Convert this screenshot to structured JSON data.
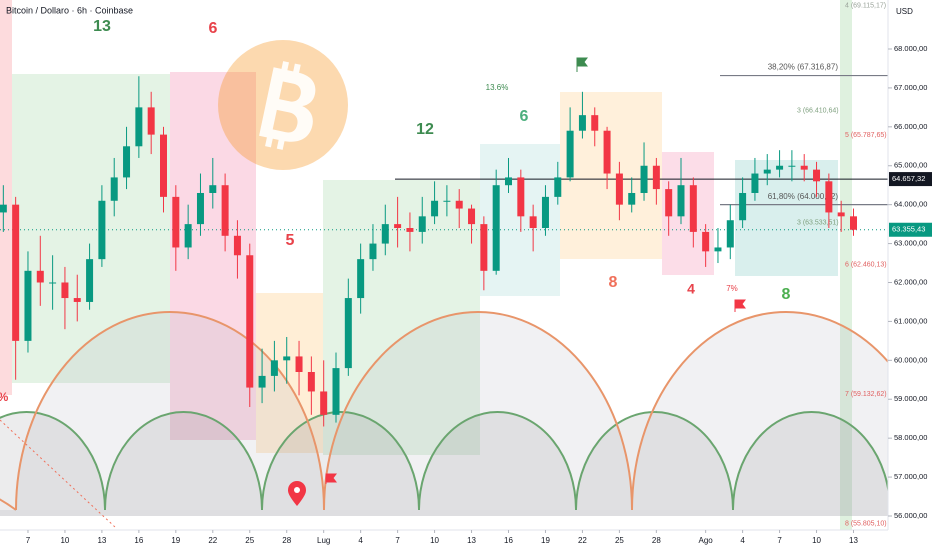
{
  "chart_data": {
    "type": "candlestick",
    "title": "Bitcoin / Dollaro · 6h · Coinbase",
    "currency": "USD",
    "up_color": "#089981",
    "down_color": "#f23645",
    "grid": false,
    "xlim": [
      4.73,
      76.8
    ],
    "ylim": [
      55640,
      69259
    ],
    "xticks": [
      7,
      10,
      13,
      16,
      19,
      22,
      25,
      28,
      {
        "value": 31,
        "label": "Lug"
      },
      34,
      37,
      40,
      43,
      46,
      49,
      52,
      55,
      58,
      {
        "value": 62,
        "label": "Ago"
      },
      65,
      68,
      71,
      74
    ],
    "x_tick_labels_override": [
      "7",
      "10",
      "13",
      "16",
      "19",
      "22",
      "25",
      "28",
      "Lug",
      "4",
      "7",
      "10",
      "13",
      "16",
      "19",
      "22",
      "25",
      "28",
      "Ago",
      "4",
      "7",
      "10",
      "13"
    ],
    "yticks": [
      {
        "value": 56000,
        "label": "56.000,00"
      },
      {
        "value": 57000,
        "label": "57.000,00"
      },
      {
        "value": 58000,
        "label": "58.000,00"
      },
      {
        "value": 59000,
        "label": "59.000,00"
      },
      {
        "value": 60000,
        "label": "60.000,00"
      },
      {
        "value": 61000,
        "label": "61.000,00"
      },
      {
        "value": 62000,
        "label": "62.000,00"
      },
      {
        "value": 63000,
        "label": "63.000,00"
      },
      {
        "value": 64000,
        "label": "64.000,00"
      },
      {
        "value": 65000,
        "label": "65.000,00"
      },
      {
        "value": 66000,
        "label": "66.000,00"
      },
      {
        "value": 67000,
        "label": "67.000,00"
      },
      {
        "value": 68000,
        "label": "68.000,00"
      }
    ],
    "x": [
      5,
      6,
      7,
      8,
      9,
      10,
      11,
      12,
      13,
      14,
      15,
      16,
      17,
      18,
      19,
      20,
      21,
      22,
      23,
      24,
      25,
      26,
      27,
      28,
      29,
      30,
      31,
      32,
      33,
      34,
      35,
      36,
      37,
      38,
      39,
      40,
      41,
      42,
      43,
      44,
      45,
      46,
      47,
      48,
      49,
      50,
      51,
      52,
      53,
      54,
      55,
      56,
      57,
      58,
      59,
      60,
      61,
      62,
      63,
      64,
      65,
      66,
      67,
      68,
      69,
      70,
      71,
      72,
      73,
      74
    ],
    "open": [
      63800,
      64000,
      60500,
      62300,
      62000,
      62000,
      61600,
      61500,
      62600,
      64100,
      64700,
      65500,
      66500,
      65800,
      64200,
      62900,
      63500,
      64300,
      64500,
      63200,
      62700,
      59300,
      59600,
      60000,
      60100,
      59700,
      59200,
      58600,
      59800,
      61600,
      62600,
      63000,
      63500,
      63400,
      63300,
      63700,
      64100,
      64100,
      63900,
      63500,
      62300,
      64500,
      64700,
      63700,
      63400,
      64200,
      64700,
      65900,
      66300,
      65900,
      64800,
      64000,
      64300,
      65000,
      64400,
      63700,
      64500,
      63300,
      62800,
      62900,
      63600,
      64300,
      64800,
      64900,
      65000,
      65000,
      64900,
      64600,
      63800,
      63700
    ],
    "high": [
      64500,
      64200,
      62800,
      63200,
      62700,
      62400,
      62200,
      63000,
      64500,
      65200,
      66000,
      67300,
      66900,
      66000,
      64500,
      64000,
      64800,
      65200,
      64800,
      63600,
      63000,
      60300,
      60500,
      60600,
      60500,
      60100,
      60000,
      60200,
      62100,
      63000,
      63500,
      64000,
      64200,
      63800,
      64200,
      64600,
      64500,
      64400,
      64000,
      63700,
      64900,
      65200,
      64900,
      64000,
      64500,
      65100,
      66500,
      66900,
      66500,
      66000,
      65100,
      64700,
      65600,
      65200,
      64600,
      65200,
      64700,
      63500,
      63400,
      64000,
      64700,
      65200,
      65300,
      65400,
      65400,
      65300,
      65100,
      64800,
      64100,
      63900
    ],
    "low": [
      63300,
      59500,
      60200,
      61400,
      61300,
      60800,
      61000,
      61300,
      62400,
      63700,
      64400,
      65200,
      65300,
      63800,
      62300,
      62600,
      63200,
      63900,
      62800,
      62100,
      58800,
      58900,
      59200,
      59400,
      59100,
      58600,
      58300,
      58400,
      59600,
      61200,
      62300,
      62700,
      62900,
      62800,
      63000,
      63500,
      63700,
      63400,
      63000,
      61800,
      62200,
      64300,
      63300,
      62800,
      63200,
      64000,
      64600,
      65700,
      65500,
      64400,
      63600,
      63800,
      64100,
      64000,
      63200,
      63500,
      62900,
      62400,
      62500,
      62600,
      63400,
      64100,
      64500,
      64700,
      64600,
      64600,
      64200,
      63400,
      63300,
      63200
    ],
    "close": [
      64000,
      60500,
      62300,
      62000,
      62000,
      61600,
      61500,
      62600,
      64100,
      64700,
      65500,
      66500,
      65800,
      64200,
      62900,
      63500,
      64300,
      64500,
      63200,
      62700,
      59300,
      59600,
      60000,
      60100,
      59700,
      59200,
      58600,
      59800,
      61600,
      62600,
      63000,
      63500,
      63400,
      63300,
      63700,
      64100,
      64100,
      63900,
      63500,
      62300,
      64500,
      64700,
      63700,
      63400,
      64200,
      64700,
      65900,
      66300,
      65900,
      64800,
      64000,
      64300,
      65000,
      64400,
      63700,
      64500,
      63300,
      62800,
      62900,
      63600,
      64300,
      64800,
      64900,
      65000,
      65000,
      64900,
      64600,
      63800,
      63700,
      63355
    ],
    "price_lines": [
      {
        "value": 64657.32,
        "label": "64.657,32",
        "color": "#131722"
      },
      {
        "value": 63355.43,
        "label": "63.355,43",
        "color": "#089981"
      }
    ],
    "fib_lines": [
      {
        "value": 67316.87,
        "label": "38,20% (67.316,87)"
      },
      {
        "value": 64000.42,
        "label": "61,80% (64.000,42)"
      }
    ],
    "levels": [
      {
        "value": 69115.17,
        "label": "4 (69.115,17)",
        "color": "#9aa39a"
      },
      {
        "value": 66410.64,
        "label": "3 (66.410,64)",
        "color": "#7fa07f"
      },
      {
        "value": 65787.65,
        "label": "5 (65.787,65)",
        "color": "#e06060"
      },
      {
        "value": 63533.51,
        "label": "3 (63.533,51)",
        "color": "#7fa07f"
      },
      {
        "value": 62460.13,
        "label": "6 (62.460,13)",
        "color": "#e06060"
      },
      {
        "value": 59132.62,
        "label": "7 (59.132,62)",
        "color": "#e06060"
      },
      {
        "value": 55805.1,
        "label": "8 (55.805,10)",
        "color": "#e06060"
      }
    ],
    "annotations": [
      {
        "text": "13",
        "color": "#3d8b50"
      },
      {
        "text": "6",
        "color": "#e8424a"
      },
      {
        "text": "5",
        "color": "#e8424a"
      },
      {
        "text": "12",
        "color": "#3d8b50"
      },
      {
        "text": "6",
        "color": "#4caf7d"
      },
      {
        "text": "8",
        "color": "#f0705a"
      },
      {
        "text": "4",
        "color": "#e8424a"
      },
      {
        "text": "8",
        "color": "#4caf50"
      },
      {
        "text": "13.6%",
        "color": "#3d8b50"
      },
      {
        "text": "7%",
        "color": "#e8424a"
      },
      {
        "text": "%",
        "color": "#e8424a"
      }
    ]
  }
}
